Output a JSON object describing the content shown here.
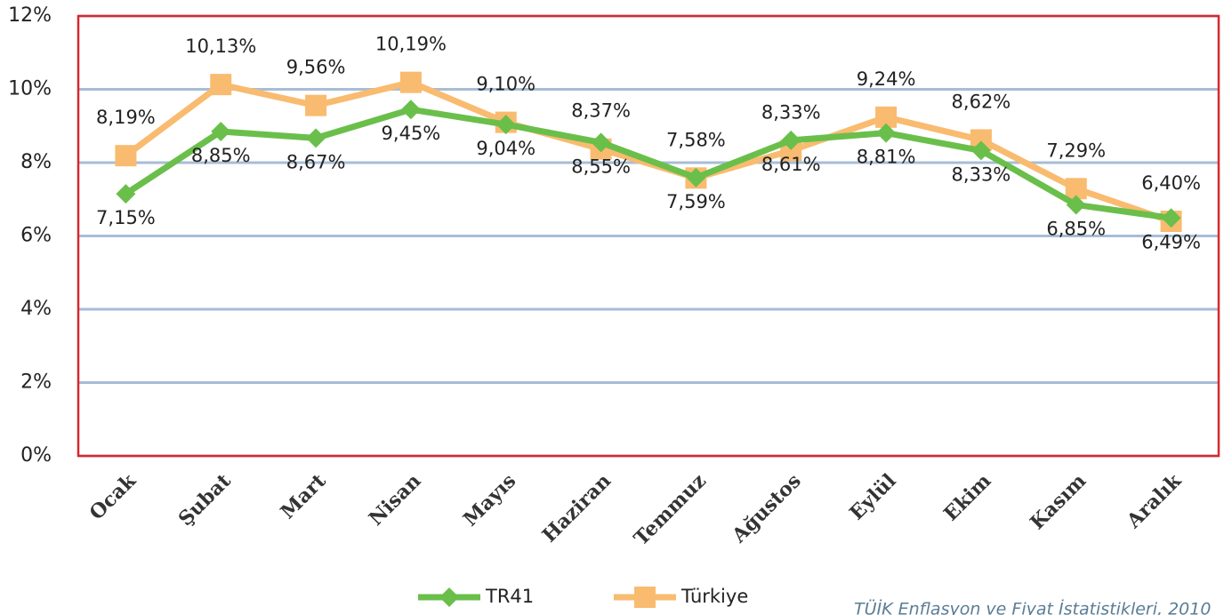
{
  "chart_data": {
    "type": "line",
    "categories": [
      "Ocak",
      "Şubat",
      "Mart",
      "Nisan",
      "Mayıs",
      "Haziran",
      "Temmuz",
      "Ağustos",
      "Eylül",
      "Ekim",
      "Kasım",
      "Aralık"
    ],
    "series": [
      {
        "name": "TR41",
        "color": "#6abf4b",
        "marker": "diamond",
        "values": [
          7.15,
          8.85,
          8.67,
          9.45,
          9.04,
          8.55,
          7.59,
          8.61,
          8.81,
          8.33,
          6.85,
          6.49
        ],
        "value_labels": [
          "7,15%",
          "8,85%",
          "8,67%",
          "9,45%",
          "9,04%",
          "8,55%",
          "7,59%",
          "8,61%",
          "8,81%",
          "8,33%",
          "6,85%",
          "6,49%"
        ]
      },
      {
        "name": "Türkiye",
        "color": "#f9bb6f",
        "marker": "square",
        "values": [
          8.19,
          10.13,
          9.56,
          10.19,
          9.1,
          8.37,
          7.58,
          8.33,
          9.24,
          8.62,
          7.29,
          6.4
        ],
        "value_labels": [
          "8,19%",
          "10,13%",
          "9,56%",
          "10,19%",
          "9,10%",
          "8,37%",
          "7,58%",
          "8,33%",
          "9,24%",
          "8,62%",
          "7,29%",
          "6,40%"
        ]
      }
    ],
    "ylim": [
      0,
      12
    ],
    "yticks": [
      {
        "value": 0,
        "label": "0%"
      },
      {
        "value": 2,
        "label": "2%"
      },
      {
        "value": 4,
        "label": "4%"
      },
      {
        "value": 6,
        "label": "6%"
      },
      {
        "value": 8,
        "label": "8%"
      },
      {
        "value": 10,
        "label": "10%"
      },
      {
        "value": 12,
        "label": "12%"
      }
    ],
    "grid": true,
    "legend": "bottom",
    "source": "TÜİK Enflasyon ve Fiyat İstatistikleri, 2010"
  }
}
